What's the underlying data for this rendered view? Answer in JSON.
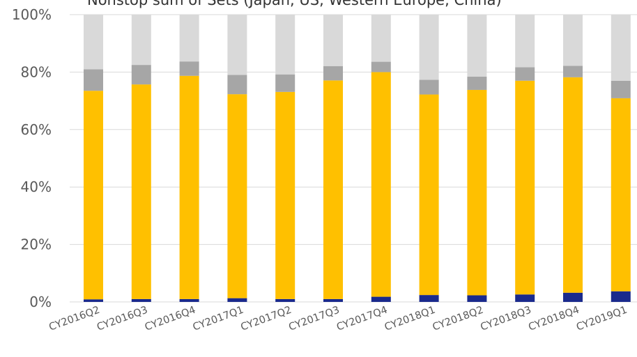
{
  "chart_data": {
    "type": "bar",
    "stacked": true,
    "normalized": true,
    "title": "Nonstop sum of Sets (Japan, US, Western Europe, China)",
    "xlabel": "",
    "ylabel": "",
    "ylim": [
      0,
      100
    ],
    "y_tick_labels": [
      "0%",
      "20%",
      "40%",
      "60%",
      "80%",
      "100%"
    ],
    "y_tick_values": [
      0,
      20,
      40,
      60,
      80,
      100
    ],
    "grid": true,
    "legend": "none",
    "categories": [
      "CY2016Q2",
      "CY2016Q3",
      "CY2016Q4",
      "CY2017Q1",
      "CY2017Q2",
      "CY2017Q3",
      "CY2017Q4",
      "CY2018Q1",
      "CY2018Q2",
      "CY2018Q3",
      "CY2018Q4",
      "CY2019Q1"
    ],
    "series": [
      {
        "color": "#1a2a8c",
        "values": [
          0.9,
          1.0,
          1.0,
          1.3,
          1.0,
          1.0,
          1.8,
          2.4,
          2.3,
          2.6,
          3.2,
          3.7
        ]
      },
      {
        "color": "#ffc000",
        "values": [
          72.6,
          74.7,
          77.7,
          71.0,
          72.1,
          76.1,
          78.2,
          69.8,
          71.5,
          74.4,
          75.0,
          67.2
        ]
      },
      {
        "color": "#a6a6a6",
        "values": [
          7.5,
          6.8,
          5.0,
          6.7,
          6.1,
          5.0,
          3.6,
          5.1,
          4.6,
          4.7,
          4.0,
          6.1
        ]
      },
      {
        "color": "#d9d9d9",
        "values": [
          19.0,
          17.5,
          16.3,
          21.0,
          20.8,
          17.9,
          16.4,
          22.7,
          21.6,
          18.3,
          17.8,
          23.0
        ]
      }
    ]
  }
}
